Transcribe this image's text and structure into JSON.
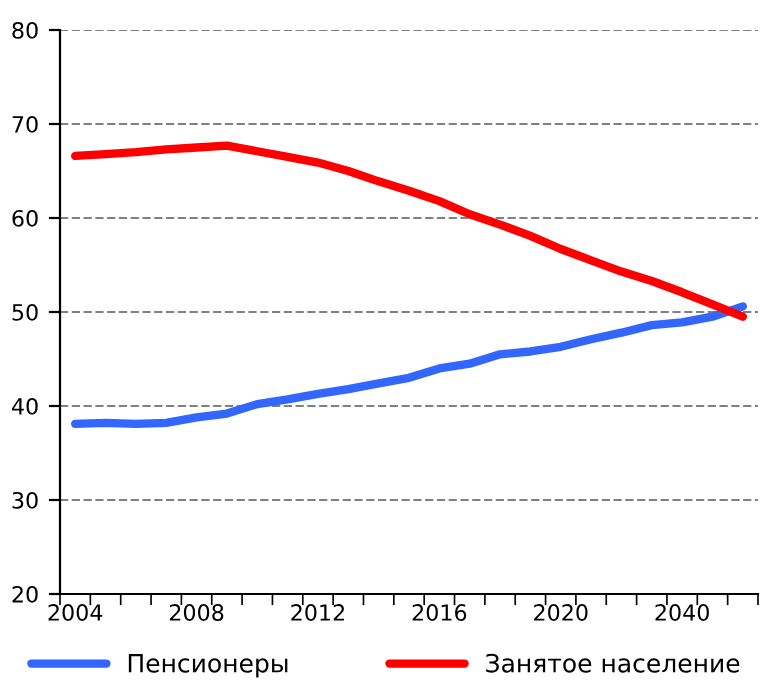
{
  "chart_data": {
    "type": "line",
    "categories": [
      "2004",
      null,
      null,
      null,
      "2008",
      null,
      null,
      null,
      "2012",
      null,
      null,
      null,
      "2016",
      null,
      null,
      null,
      "2020",
      null,
      null,
      null,
      "2040",
      null,
      null
    ],
    "series": [
      {
        "name": "Пенсионеры",
        "color": "#3366ff",
        "values": [
          38.1,
          38.2,
          38.1,
          38.2,
          38.8,
          39.2,
          40.2,
          40.7,
          41.3,
          41.8,
          42.4,
          43.0,
          44.0,
          44.5,
          45.5,
          45.8,
          46.3,
          47.1,
          47.8,
          48.6,
          48.9,
          49.5,
          50.6
        ]
      },
      {
        "name": "Занятое население",
        "color": "#ff0000",
        "values": [
          66.6,
          66.8,
          67.0,
          67.3,
          67.5,
          67.7,
          67.1,
          66.5,
          65.9,
          65.0,
          63.9,
          62.9,
          61.8,
          60.4,
          59.3,
          58.1,
          56.7,
          55.5,
          54.3,
          53.3,
          52.1,
          50.8,
          49.5
        ]
      }
    ],
    "ylim": [
      20,
      80
    ],
    "yticks": [
      20,
      30,
      40,
      50,
      60,
      70,
      80
    ],
    "grid": "y",
    "legend": "bottom",
    "marker": "none",
    "line_style": "solid"
  }
}
